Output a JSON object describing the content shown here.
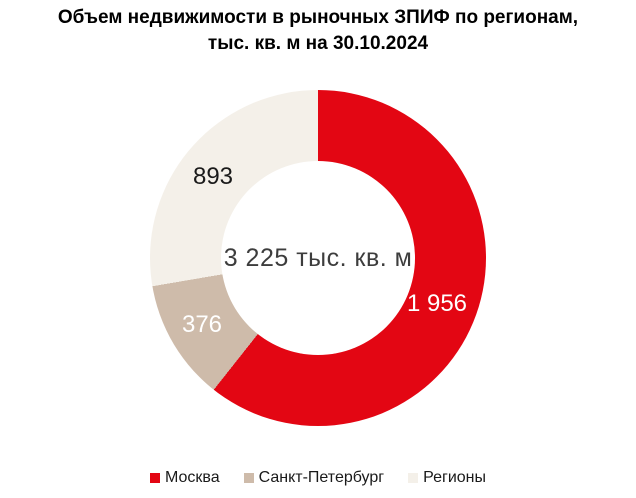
{
  "title": {
    "line1": "Объем недвижимости в рыночных ЗПИФ по регионам,",
    "line2": "тыс. кв. м на 30.10.2024"
  },
  "chart_data": {
    "type": "pie",
    "subtype": "donut",
    "title": "Объем недвижимости в рыночных ЗПИФ по регионам, тыс. кв. м на 30.10.2024",
    "categories": [
      "Москва",
      "Санкт-Петербург",
      "Регионы"
    ],
    "values": [
      1956,
      376,
      893
    ],
    "value_labels": [
      "1 956",
      "376",
      "893"
    ],
    "total": 3225,
    "center_label": "3 225 тыс. кв. м",
    "colors": [
      "#e30613",
      "#cebbaa",
      "#f4f0e9"
    ],
    "start_angle_deg": 0,
    "direction": "clockwise",
    "legend_position": "bottom"
  }
}
